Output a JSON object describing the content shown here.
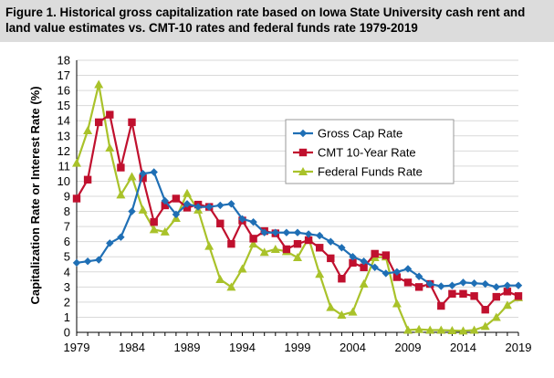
{
  "figure": {
    "title": "Figure 1. Historical gross capitalization rate based on Iowa State University cash rent and land value estimates vs. CMT-10 rates and federal funds rate 1979-2019"
  },
  "chart_data": {
    "type": "line",
    "title": "Figure 1. Historical gross capitalization rate based on Iowa State University cash rent and land value estimates vs. CMT-10 rates and federal funds rate 1979-2019",
    "xlabel": "",
    "ylabel": "Capitalization Rate or Interest Rate (%)",
    "xlim": [
      1979,
      2019
    ],
    "ylim": [
      0,
      18
    ],
    "x_ticks": [
      "1979",
      "1984",
      "1989",
      "1994",
      "1999",
      "2004",
      "2009",
      "2014",
      "2019"
    ],
    "y_ticks": [
      "0",
      "1",
      "2",
      "3",
      "4",
      "5",
      "6",
      "7",
      "8",
      "9",
      "10",
      "11",
      "12",
      "13",
      "14",
      "15",
      "16",
      "17",
      "18"
    ],
    "grid": "horizontal",
    "legend_position": "center-right",
    "x": [
      1979,
      1980,
      1981,
      1982,
      1983,
      1984,
      1985,
      1986,
      1987,
      1988,
      1989,
      1990,
      1991,
      1992,
      1993,
      1994,
      1995,
      1996,
      1997,
      1998,
      1999,
      2000,
      2001,
      2002,
      2003,
      2004,
      2005,
      2006,
      2007,
      2008,
      2009,
      2010,
      2011,
      2012,
      2013,
      2014,
      2015,
      2016,
      2017,
      2018,
      2019
    ],
    "series": [
      {
        "name": "Gross Cap Rate",
        "color": "#1f6fb5",
        "marker": "diamond",
        "values": [
          4.6,
          4.7,
          4.8,
          5.9,
          6.3,
          8.0,
          10.5,
          10.6,
          8.7,
          7.8,
          8.5,
          8.3,
          8.3,
          8.4,
          8.5,
          7.5,
          7.3,
          6.6,
          6.6,
          6.6,
          6.6,
          6.5,
          6.4,
          6.0,
          5.6,
          5.0,
          4.7,
          4.3,
          3.9,
          4.0,
          4.2,
          3.7,
          3.2,
          3.05,
          3.1,
          3.3,
          3.25,
          3.2,
          3.0,
          3.1,
          3.1
        ]
      },
      {
        "name": "CMT 10-Year Rate",
        "color": "#c0102e",
        "marker": "square",
        "values": [
          8.85,
          10.1,
          13.9,
          14.4,
          10.9,
          13.9,
          10.2,
          7.3,
          8.4,
          8.85,
          8.25,
          8.45,
          8.3,
          7.2,
          5.85,
          7.4,
          6.2,
          6.7,
          6.55,
          5.5,
          5.85,
          6.1,
          5.6,
          4.9,
          3.55,
          4.6,
          4.3,
          5.2,
          5.1,
          3.65,
          3.3,
          3.0,
          3.2,
          1.75,
          2.55,
          2.55,
          2.4,
          1.5,
          2.35,
          2.7,
          2.4
        ]
      },
      {
        "name": "Federal Funds Rate",
        "color": "#a9c22a",
        "marker": "triangle",
        "values": [
          11.2,
          13.35,
          16.4,
          12.2,
          9.1,
          10.3,
          8.1,
          6.8,
          6.65,
          7.55,
          9.2,
          8.1,
          5.7,
          3.5,
          3.0,
          4.2,
          5.85,
          5.3,
          5.5,
          5.35,
          4.95,
          6.25,
          3.85,
          1.65,
          1.15,
          1.35,
          3.2,
          4.95,
          5.0,
          1.9,
          0.15,
          0.2,
          0.15,
          0.15,
          0.12,
          0.1,
          0.15,
          0.4,
          1.0,
          1.8,
          2.3
        ]
      }
    ]
  }
}
